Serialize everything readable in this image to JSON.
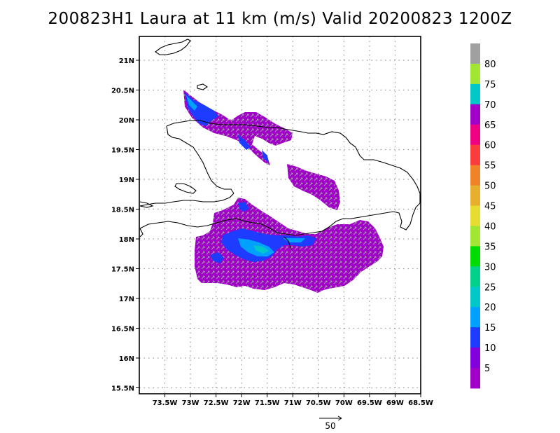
{
  "title": "200823H1 Laura at 11 km (m/s) Valid 20200823 1200Z",
  "map": {
    "lon_range": [
      -74,
      -68.5
    ],
    "lat_range": [
      15.4,
      21.4
    ],
    "lat_ticks": [
      {
        "value": 21,
        "label": "21N"
      },
      {
        "value": 20.5,
        "label": "20.5N"
      },
      {
        "value": 20,
        "label": "20N"
      },
      {
        "value": 19.5,
        "label": "19.5N"
      },
      {
        "value": 19,
        "label": "19N"
      },
      {
        "value": 18.5,
        "label": "18.5N"
      },
      {
        "value": 18,
        "label": "18N"
      },
      {
        "value": 17.5,
        "label": "17.5N"
      },
      {
        "value": 17,
        "label": "17N"
      },
      {
        "value": 16.5,
        "label": "16.5N"
      },
      {
        "value": 16,
        "label": "16N"
      },
      {
        "value": 15.5,
        "label": "15.5N"
      }
    ],
    "lon_ticks": [
      {
        "value": -73.5,
        "label": "73.5W"
      },
      {
        "value": -73,
        "label": "73W"
      },
      {
        "value": -72.5,
        "label": "72.5W"
      },
      {
        "value": -72,
        "label": "72W"
      },
      {
        "value": -71.5,
        "label": "71.5W"
      },
      {
        "value": -71,
        "label": "71W"
      },
      {
        "value": -70.5,
        "label": "70.5W"
      },
      {
        "value": -70,
        "label": "70W"
      },
      {
        "value": -69.5,
        "label": "69.5W"
      },
      {
        "value": -69,
        "label": "69W"
      },
      {
        "value": -68.5,
        "label": "68.5W"
      }
    ],
    "grid": true
  },
  "colorbar": {
    "labels": [
      "80",
      "75",
      "70",
      "65",
      "60",
      "55",
      "50",
      "45",
      "40",
      "35",
      "30",
      "25",
      "20",
      "15",
      "10",
      "5"
    ],
    "colors": [
      "#a0a0a0",
      "#a0e632",
      "#00c8c8",
      "#a000c8",
      "#f00082",
      "#fa3c3c",
      "#f08228",
      "#e6af2d",
      "#e6dc32",
      "#a0e632",
      "#00dc00",
      "#00d28c",
      "#00c8c8",
      "#00a0ff",
      "#1e3cff",
      "#8200dc",
      "#a000c8"
    ]
  },
  "reference_vector": {
    "label": "50"
  },
  "colors": {
    "swath": "#a000c8",
    "core": "#1e3cff",
    "vector": "#a0a0a0",
    "coast": "#000000"
  }
}
